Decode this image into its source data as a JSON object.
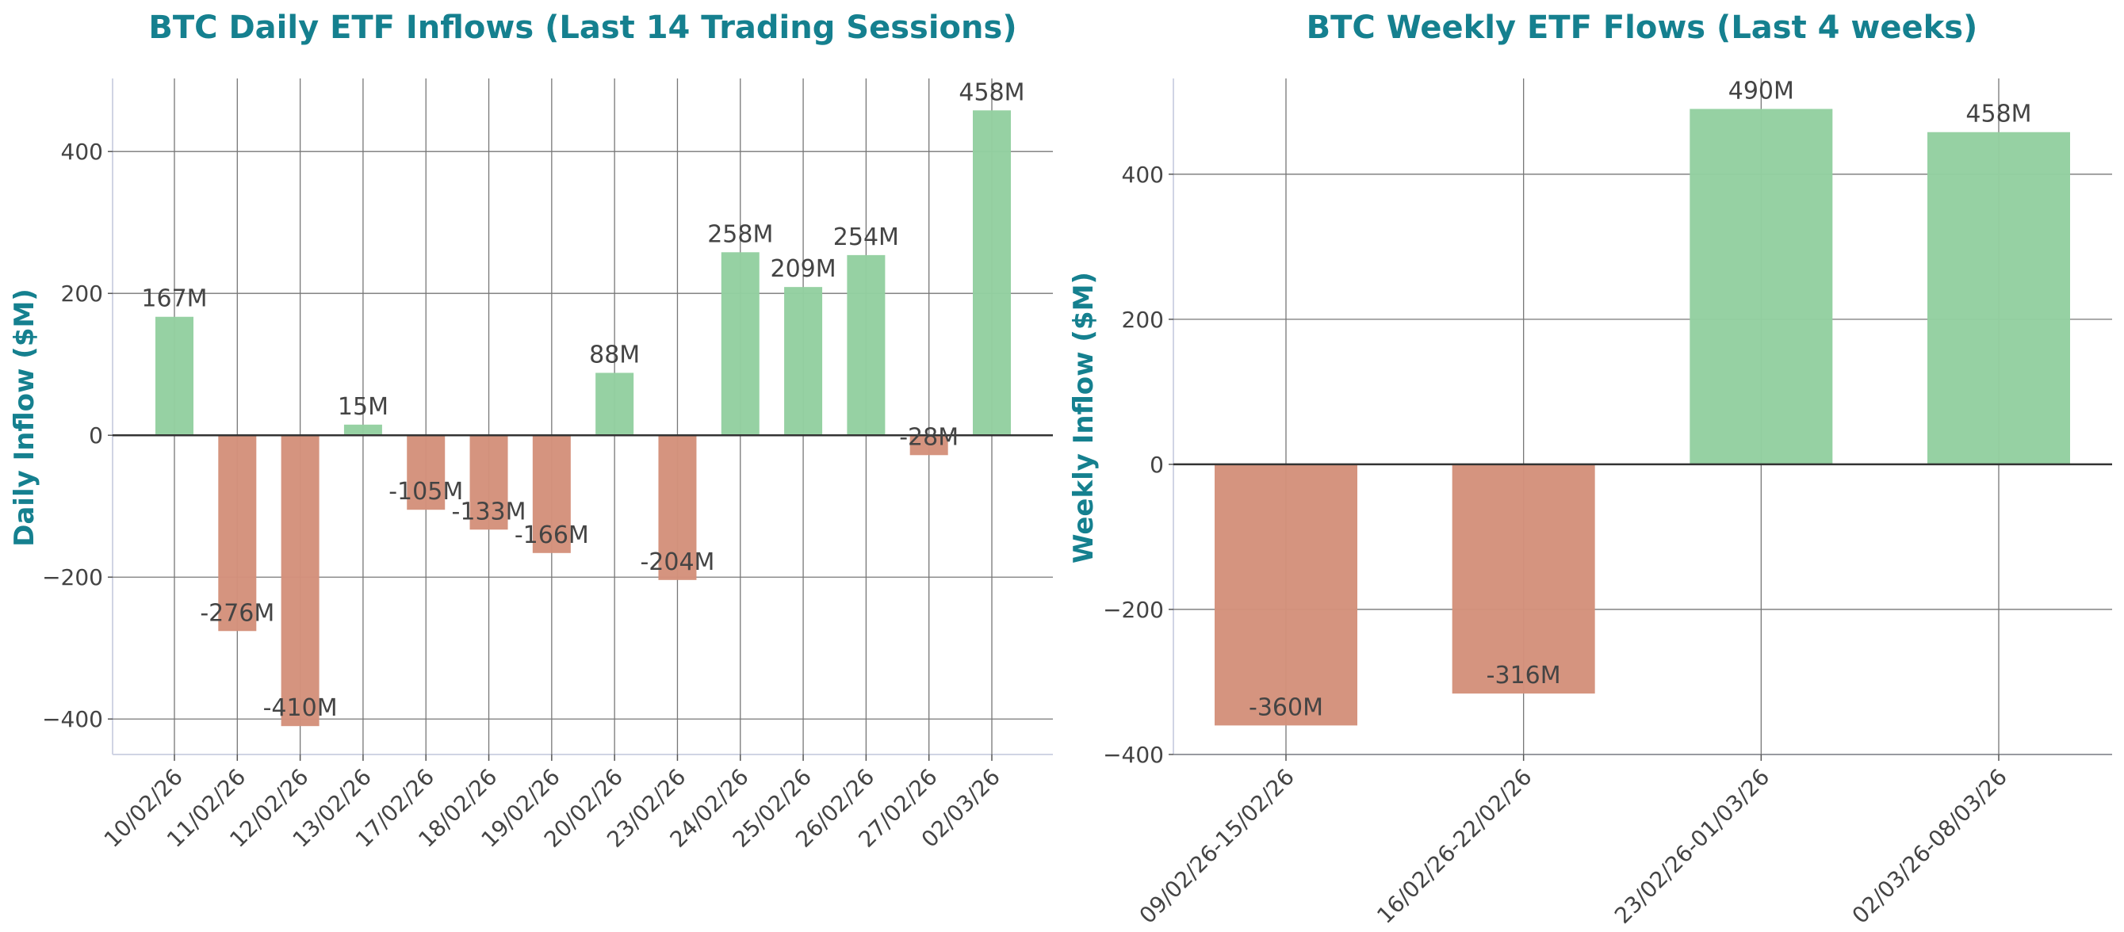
{
  "chart_data": [
    {
      "type": "bar",
      "title": "BTC Daily ETF Inflows (Last 14 Trading Sessions)",
      "xlabel": "",
      "ylabel": "Daily Inflow ($M)",
      "categories": [
        "10/02/26",
        "11/02/26",
        "12/02/26",
        "13/02/26",
        "17/02/26",
        "18/02/26",
        "19/02/26",
        "20/02/26",
        "23/02/26",
        "24/02/26",
        "25/02/26",
        "26/02/26",
        "27/02/26",
        "02/03/26"
      ],
      "values": [
        167,
        -276,
        -410,
        15,
        -105,
        -133,
        -166,
        88,
        -204,
        258,
        209,
        254,
        -28,
        458
      ],
      "data_labels": [
        "167M",
        "-276M",
        "-410M",
        "15M",
        "-105M",
        "-133M",
        "-166M",
        "88M",
        "-204M",
        "258M",
        "209M",
        "254M",
        "-28M",
        "458M"
      ],
      "ylim": [
        -450,
        503
      ],
      "yticks": [
        -400,
        -200,
        0,
        200,
        400
      ],
      "ytick_labels": [
        "−400",
        "−200",
        "0",
        "200",
        "400"
      ],
      "grid": true,
      "colors": {
        "positive": "#93cfa0",
        "negative": "#d4917b",
        "title": "#15808f"
      }
    },
    {
      "type": "bar",
      "title": "BTC Weekly ETF Flows (Last 4 weeks)",
      "xlabel": "",
      "ylabel": "Weekly Inflow ($M)",
      "categories": [
        "09/02/26-15/02/26",
        "16/02/26-22/02/26",
        "23/02/26-01/03/26",
        "02/03/26-08/03/26"
      ],
      "values": [
        -360,
        -316,
        490,
        458
      ],
      "data_labels": [
        "-360M",
        "-316M",
        "490M",
        "458M"
      ],
      "ylim": [
        -400,
        532
      ],
      "yticks": [
        -400,
        -200,
        0,
        200,
        400
      ],
      "ytick_labels": [
        "−400",
        "−200",
        "0",
        "200",
        "400"
      ],
      "grid": true,
      "colors": {
        "positive": "#93cfa0",
        "negative": "#d4917b",
        "title": "#15808f"
      }
    }
  ]
}
